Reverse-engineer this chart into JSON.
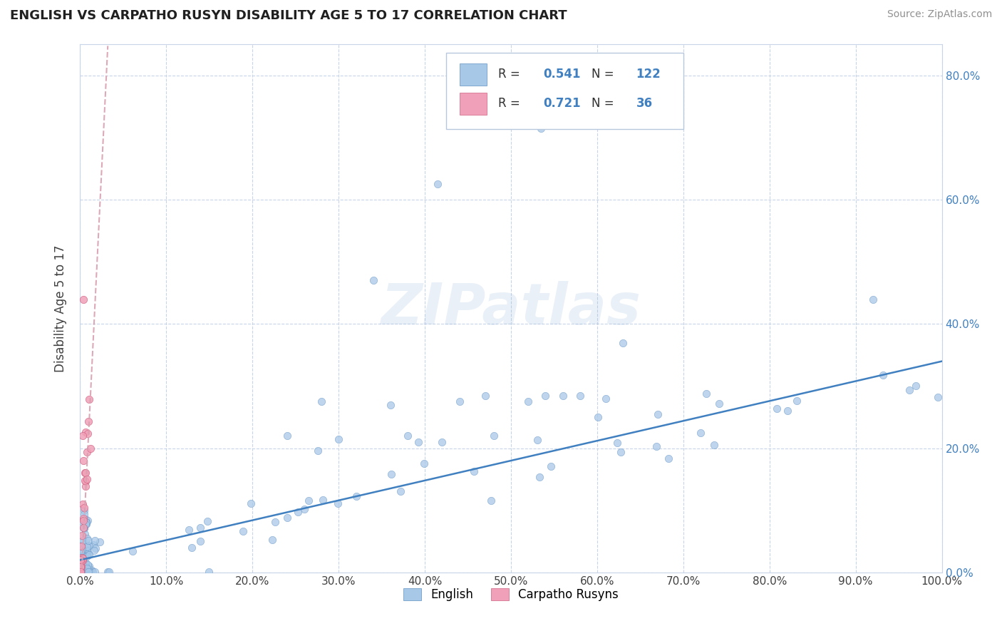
{
  "title": "ENGLISH VS CARPATHO RUSYN DISABILITY AGE 5 TO 17 CORRELATION CHART",
  "source": "Source: ZipAtlas.com",
  "ylabel": "Disability Age 5 to 17",
  "R_english": 0.541,
  "N_english": 122,
  "R_rusyn": 0.721,
  "N_rusyn": 36,
  "legend_labels": [
    "English",
    "Carpatho Rusyns"
  ],
  "watermark": "ZIPatlas",
  "blue_scatter_color": "#a8c8e8",
  "blue_edge_color": "#6090c0",
  "pink_scatter_color": "#f0a0b8",
  "pink_edge_color": "#d06080",
  "trend_blue_color": "#4080c0",
  "trend_pink_color": "#e08090",
  "label_blue_color": "#4080c0",
  "grid_color": "#c8d4e8",
  "background_color": "#ffffff",
  "text_color": "#404040",
  "right_axis_color": "#4080c0",
  "xlim": [
    0.0,
    1.0
  ],
  "ylim": [
    0.0,
    0.85
  ],
  "xticks": [
    0.0,
    0.1,
    0.2,
    0.3,
    0.4,
    0.5,
    0.6,
    0.7,
    0.8,
    0.9,
    1.0
  ],
  "yticks": [
    0.0,
    0.2,
    0.4,
    0.6,
    0.8
  ],
  "eng_trend_slope": 0.32,
  "eng_trend_intercept": 0.02,
  "rus_trend_slope": 28.0,
  "rus_trend_intercept": -0.05
}
